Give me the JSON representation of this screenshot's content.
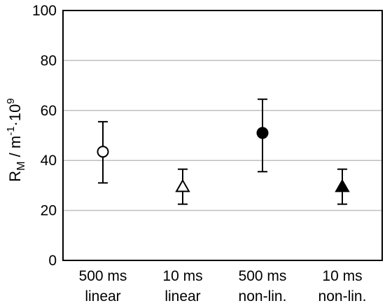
{
  "chart_data": {
    "type": "scatter",
    "title": "",
    "xlabel": "",
    "ylabel": {
      "main": "R",
      "sub": "M",
      "sep": " / m",
      "exp": "-1",
      "mid": "·10",
      "exp2": "9"
    },
    "ylim": [
      0,
      100
    ],
    "yticks": [
      0,
      20,
      40,
      60,
      80,
      100
    ],
    "grid": "horizontal",
    "legend": "none",
    "categories": [
      {
        "line1": "500 ms",
        "line2": "linear"
      },
      {
        "line1": "10 ms",
        "line2": "linear"
      },
      {
        "line1": "500 ms",
        "line2": "non-lin."
      },
      {
        "line1": "10 ms",
        "line2": "non-lin."
      }
    ],
    "points": [
      {
        "value": 43.5,
        "err_low": 31,
        "err_high": 55.5,
        "marker": "circle-open"
      },
      {
        "value": 29.5,
        "err_low": 22.5,
        "err_high": 36.5,
        "marker": "triangle-open"
      },
      {
        "value": 51,
        "err_low": 35.5,
        "err_high": 64.5,
        "marker": "circle-filled"
      },
      {
        "value": 29.5,
        "err_low": 22.5,
        "err_high": 36.5,
        "marker": "triangle-filled"
      }
    ],
    "colors": {
      "axis": "#000000",
      "grid": "#bfbfbf",
      "marker": "#000000"
    }
  }
}
